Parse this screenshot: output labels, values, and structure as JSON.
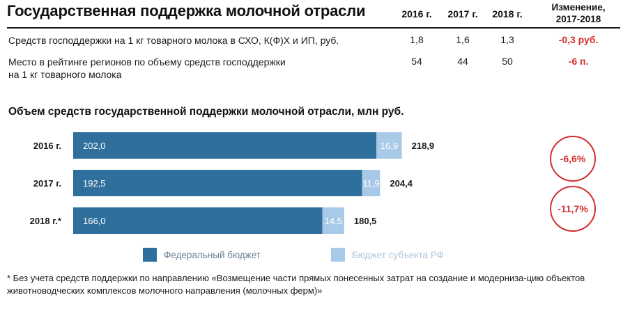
{
  "title": "Государственная поддержка молочной отрасли",
  "table": {
    "columns": [
      "2016 г.",
      "2017 г.",
      "2018 г."
    ],
    "change_header": [
      "Изменение,",
      "2017-2018"
    ],
    "rows": [
      {
        "label": "Средств господдержки на 1 кг товарного молока в СХО, К(Ф)Х и ИП, руб.",
        "values": [
          "1,8",
          "1,6",
          "1,3"
        ],
        "change": "-0,3 руб."
      },
      {
        "label_lines": [
          "Место в рейтинге регионов по объему средств господдержки",
          "на 1 кг товарного молока"
        ],
        "values": [
          "54",
          "44",
          "50"
        ],
        "change": "-6 п."
      }
    ]
  },
  "chart_title": "Объем средств государственной поддержки молочной отрасли, млн руб.",
  "chart_data": {
    "type": "bar",
    "orientation": "horizontal",
    "stacked": true,
    "categories": [
      "2016 г.",
      "2017 г.",
      "2018 г.*"
    ],
    "series": [
      {
        "name": "Федеральный бюджет",
        "values": [
          202.0,
          192.5,
          166.0
        ],
        "labels": [
          "202,0",
          "192,5",
          "166,0"
        ],
        "color": "#2e6f9b"
      },
      {
        "name": "Бюджет субъекта РФ",
        "values": [
          16.9,
          11.9,
          14.5
        ],
        "labels": [
          "16,9",
          "11,9",
          "14,5"
        ],
        "color": "#a9c9e8"
      }
    ],
    "totals": [
      "218,9",
      "204,4",
      "180,5"
    ],
    "changes": [
      "-6,6%",
      "-11,7%"
    ],
    "change_color": "#d42e2e",
    "legend_position": "bottom"
  },
  "legend": [
    {
      "label": "Федеральный бюджет",
      "color": "#2e6f9b"
    },
    {
      "label": "Бюджет субъекта РФ",
      "color": "#a9c9e8"
    }
  ],
  "footnote": "* Без учета средств поддержки по направлению «Возмещение части прямых понесенных затрат на создание и модерниза-цию объектов животноводческих комплексов молочного направления (молочных ферм)»"
}
